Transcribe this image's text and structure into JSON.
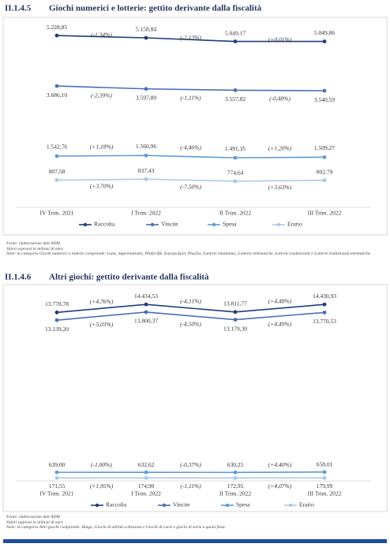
{
  "chart_data": [
    {
      "type": "line",
      "section": "II.1.4.5",
      "title": "Giochi numerici e lotterie: gettito derivante dalla fiscalità",
      "categories": [
        "IV Trim. 2021",
        "I Trim. 2022",
        "II Trim. 2022",
        "III Trim. 2022"
      ],
      "ylim": [
        0,
        5400
      ],
      "series": [
        {
          "name": "Raccolta",
          "color": "#1f3d7a",
          "values": [
            5228.85,
            5158.84,
            5049.17,
            5049.86
          ],
          "value_labels": [
            "5.228,85",
            "5.158,84",
            "5.049,17",
            "5.049,86"
          ],
          "change_labels": [
            "(-1,34%)",
            "(-2,13%)",
            "(+0,01%)"
          ]
        },
        {
          "name": "Vincite",
          "color": "#4a6fb5",
          "values": [
            3686.1,
            3597.89,
            3557.82,
            3540.59
          ],
          "value_labels": [
            "3.686,10",
            "3.597,89",
            "3.557,82",
            "3.540,59"
          ],
          "change_labels": [
            "(-2,39%)",
            "(-1,11%)",
            "(-0,48%)"
          ]
        },
        {
          "name": "Spesa",
          "color": "#5b9bd5",
          "values": [
            1542.76,
            1560.96,
            1491.35,
            1509.27
          ],
          "value_labels": [
            "1.542,76",
            "1.560,96",
            "1.491,35",
            "1.509,27"
          ],
          "change_labels": [
            "(+1,18%)",
            "(-4,46%)",
            "(+1,20%)"
          ]
        },
        {
          "name": "Erario",
          "color": "#aac8e8",
          "values": [
            807.58,
            837.43,
            774.64,
            802.79
          ],
          "value_labels": [
            "807,58",
            "837,43",
            "774,64",
            "802,79"
          ],
          "change_labels": [
            "(+3,70%)",
            "(-7,50%)",
            "(+3,63%)"
          ]
        }
      ],
      "notes": [
        "Fonte: elaborazione dati ADM",
        "Valori espressi in milioni di euro",
        "Note: la categoria Giochi numerici e lotterie comprende: Lotto, Superenalotto, Winforlife, Eurojackpot, PlaySix, Lotterie istantanee, Lotterie telematiche, Lotterie tradizionali e Lotterie tradizionali telematiche"
      ]
    },
    {
      "type": "line",
      "section": "II.1.4.6",
      "title": "Altri giochi: gettito derivante dalla fiscalità",
      "categories": [
        "IV Trim. 2021",
        "I Trim. 2022",
        "II Trim. 2022",
        "III Trim. 2022"
      ],
      "ylim": [
        0,
        16000
      ],
      "series": [
        {
          "name": "Raccolta",
          "color": "#1f3d7a",
          "values": [
            13778.78,
            14434.53,
            13811.77,
            14430.93
          ],
          "value_labels": [
            "13.778,78",
            "14.434,53",
            "13.811,77",
            "14.430,93"
          ],
          "change_labels": [
            "(+4,76%)",
            "(-4,31%)",
            "(+4,48%)"
          ]
        },
        {
          "name": "Vincite",
          "color": "#4a6fb5",
          "values": [
            13139.2,
            13800.37,
            13179.3,
            13770.53
          ],
          "value_labels": [
            "13.139,20",
            "13.800,37",
            "13.179,30",
            "13.770,53"
          ],
          "change_labels": [
            "(+5,03%)",
            "(-4,50%)",
            "(+4,49%)"
          ]
        },
        {
          "name": "Spesa",
          "color": "#5b9bd5",
          "values": [
            639.0,
            632.62,
            630.25,
            658.01
          ],
          "value_labels": [
            "639,00",
            "632,62",
            "630,25",
            "658,01"
          ],
          "change_labels": [
            "(-1,00%)",
            "(-0,37%)",
            "(+4,40%)"
          ]
        },
        {
          "name": "Erario",
          "color": "#aac8e8",
          "values": [
            171.55,
            174.9,
            172.95,
            179.99
          ],
          "value_labels": [
            "171,55",
            "174,90",
            "172,95",
            "179,99"
          ],
          "change_labels": [
            "(+1,95%)",
            "(-1,11%)",
            "(+4,07%)"
          ]
        }
      ],
      "notes": [
        "Fonte: elaborazione dati ADM",
        "Valori espressi in milioni di euro",
        "Note: la categoria Altri giochi comprende: Bingo, Giochi di abilità a distanza e Giochi di carte e giochi di sorte a quota fissa."
      ]
    }
  ]
}
